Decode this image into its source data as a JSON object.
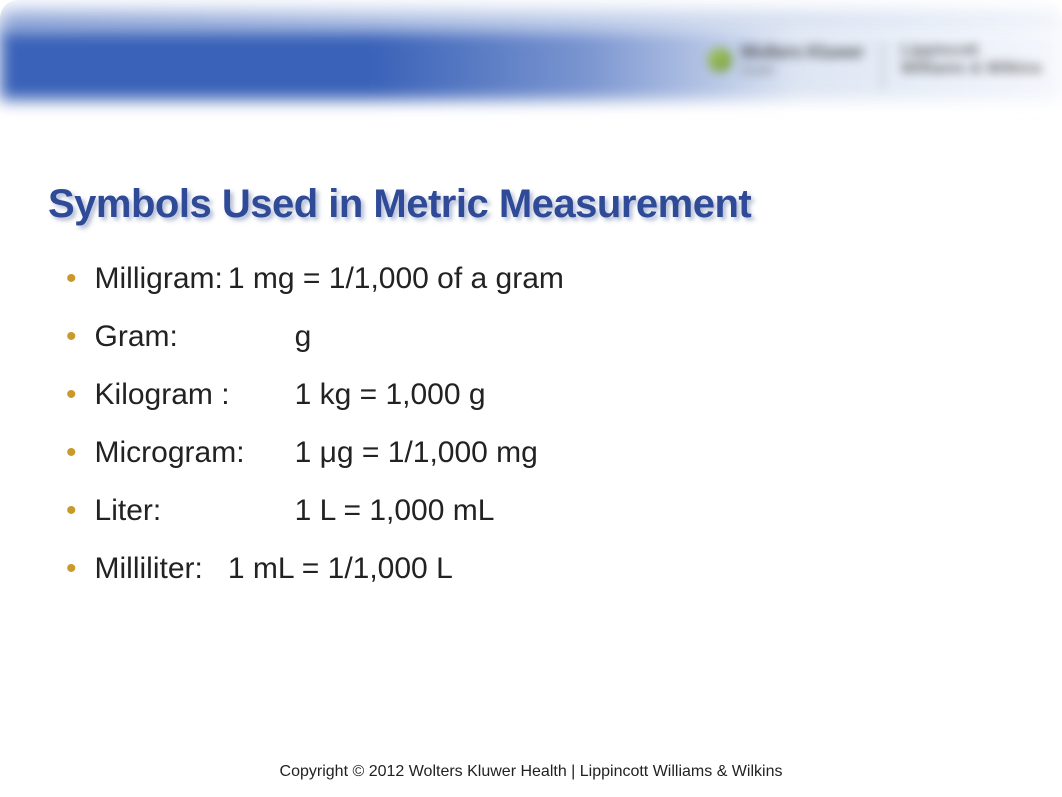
{
  "title": "Symbols Used in Metric Measurement",
  "title_color": "#2f4a96",
  "title_fontsize": 40,
  "bullet_color": "#c79a2a",
  "body_color": "#222222",
  "body_fontsize": 30,
  "background_color": "#ffffff",
  "header": {
    "band_gradient_colors": [
      "#3a62b8",
      "#7a95d0",
      "#dde5f3",
      "#f4f7fc"
    ],
    "logo_wk_line1": "Wolters Kluwer",
    "logo_wk_line2": "Health",
    "logo_lww_line1": "Lippincott",
    "logo_lww_line2": "Williams & Wilkins"
  },
  "bullets": [
    {
      "label": "Milligram:\t",
      "value": "1 mg = 1/1,000 of a gram"
    },
    {
      "label": "Gram:\t\t",
      "value": "g"
    },
    {
      "label": "Kilogram :\t",
      "value": "1 kg = 1,000 g"
    },
    {
      "label": "Microgram:\t",
      "value": "1 μg = 1/1,000 mg"
    },
    {
      "label": "Liter:\t\t",
      "value": "1 L = 1,000 mL"
    },
    {
      "label": "Milliliter:\t",
      "value": "1 mL = 1/1,000 L"
    }
  ],
  "footer": "Copyright © 2012 Wolters Kluwer Health | Lippincott Williams & Wilkins"
}
